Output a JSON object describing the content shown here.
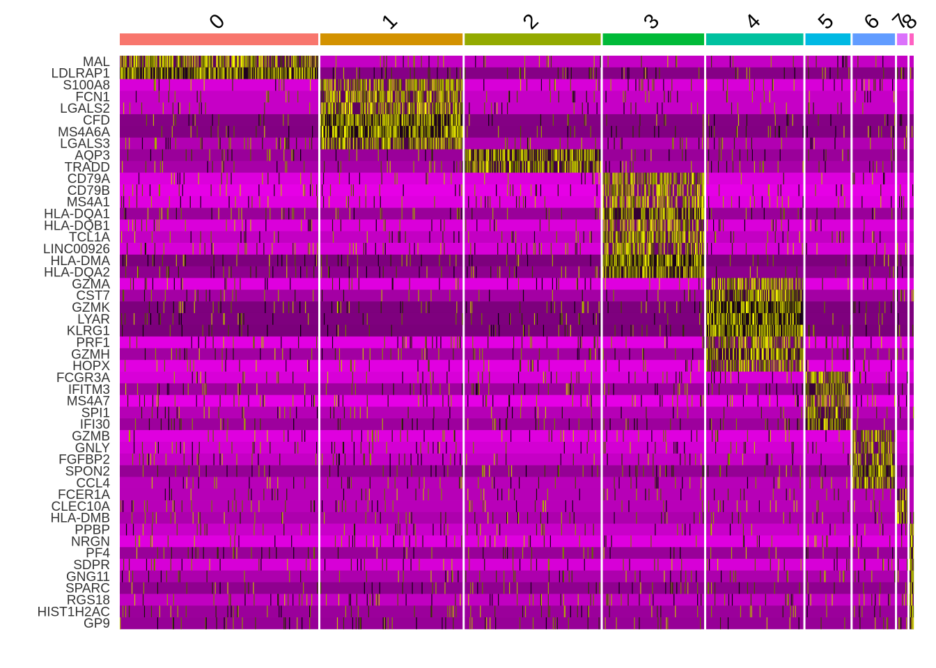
{
  "chart_data": {
    "type": "heatmap",
    "title": "",
    "xlabel": "",
    "ylabel": "",
    "clusters": [
      {
        "label": "0",
        "color": "#F8766D",
        "cells": 286
      },
      {
        "label": "1",
        "color": "#D39200",
        "cells": 205
      },
      {
        "label": "2",
        "color": "#93AA00",
        "cells": 196
      },
      {
        "label": "3",
        "color": "#00BA38",
        "cells": 146
      },
      {
        "label": "4",
        "color": "#00C19F",
        "cells": 140
      },
      {
        "label": "5",
        "color": "#00B9E3",
        "cells": 65
      },
      {
        "label": "6",
        "color": "#619CFF",
        "cells": 61
      },
      {
        "label": "7",
        "color": "#DB72FB",
        "cells": 15
      },
      {
        "label": "8",
        "color": "#FF61C3",
        "cells": 6
      }
    ],
    "genes": [
      {
        "name": "MAL",
        "group": 0
      },
      {
        "name": "LDLRAP1",
        "group": 0
      },
      {
        "name": "S100A8",
        "group": 1
      },
      {
        "name": "FCN1",
        "group": 1
      },
      {
        "name": "LGALS2",
        "group": 1
      },
      {
        "name": "CFD",
        "group": 1
      },
      {
        "name": "MS4A6A",
        "group": 1
      },
      {
        "name": "LGALS3",
        "group": 1
      },
      {
        "name": "AQP3",
        "group": 2
      },
      {
        "name": "TRADD",
        "group": 2
      },
      {
        "name": "CD79A",
        "group": 3
      },
      {
        "name": "CD79B",
        "group": 3
      },
      {
        "name": "MS4A1",
        "group": 3
      },
      {
        "name": "HLA-DQA1",
        "group": 3
      },
      {
        "name": "HLA-DQB1",
        "group": 3
      },
      {
        "name": "TCL1A",
        "group": 3
      },
      {
        "name": "LINC00926",
        "group": 3
      },
      {
        "name": "HLA-DMA",
        "group": 3
      },
      {
        "name": "HLA-DQA2",
        "group": 3
      },
      {
        "name": "GZMA",
        "group": 4
      },
      {
        "name": "CST7",
        "group": 4
      },
      {
        "name": "GZMK",
        "group": 4
      },
      {
        "name": "LYAR",
        "group": 4
      },
      {
        "name": "KLRG1",
        "group": 4
      },
      {
        "name": "PRF1",
        "group": 4
      },
      {
        "name": "GZMH",
        "group": 4
      },
      {
        "name": "HOPX",
        "group": 4
      },
      {
        "name": "FCGR3A",
        "group": 5
      },
      {
        "name": "IFITM3",
        "group": 5
      },
      {
        "name": "MS4A7",
        "group": 5
      },
      {
        "name": "SPI1",
        "group": 5
      },
      {
        "name": "IFI30",
        "group": 5
      },
      {
        "name": "GZMB",
        "group": 6
      },
      {
        "name": "GNLY",
        "group": 6
      },
      {
        "name": "FGFBP2",
        "group": 6
      },
      {
        "name": "SPON2",
        "group": 6
      },
      {
        "name": "CCL4",
        "group": 6
      },
      {
        "name": "FCER1A",
        "group": 7
      },
      {
        "name": "CLEC10A",
        "group": 7
      },
      {
        "name": "HLA-DMB",
        "group": 7
      },
      {
        "name": "PPBP",
        "group": 8
      },
      {
        "name": "NRGN",
        "group": 8
      },
      {
        "name": "PF4",
        "group": 8
      },
      {
        "name": "SDPR",
        "group": 8
      },
      {
        "name": "GNG11",
        "group": 8
      },
      {
        "name": "SPARC",
        "group": 8
      },
      {
        "name": "RGS18",
        "group": 8
      },
      {
        "name": "HIST1H2AC",
        "group": 8
      },
      {
        "name": "GP9",
        "group": 8
      }
    ],
    "value_range": [
      -2.5,
      2.5
    ],
    "color_scale": {
      "low": "#FF00FF",
      "mid": "#000000",
      "high": "#FFFF00"
    },
    "legend": "none",
    "grid": false
  }
}
